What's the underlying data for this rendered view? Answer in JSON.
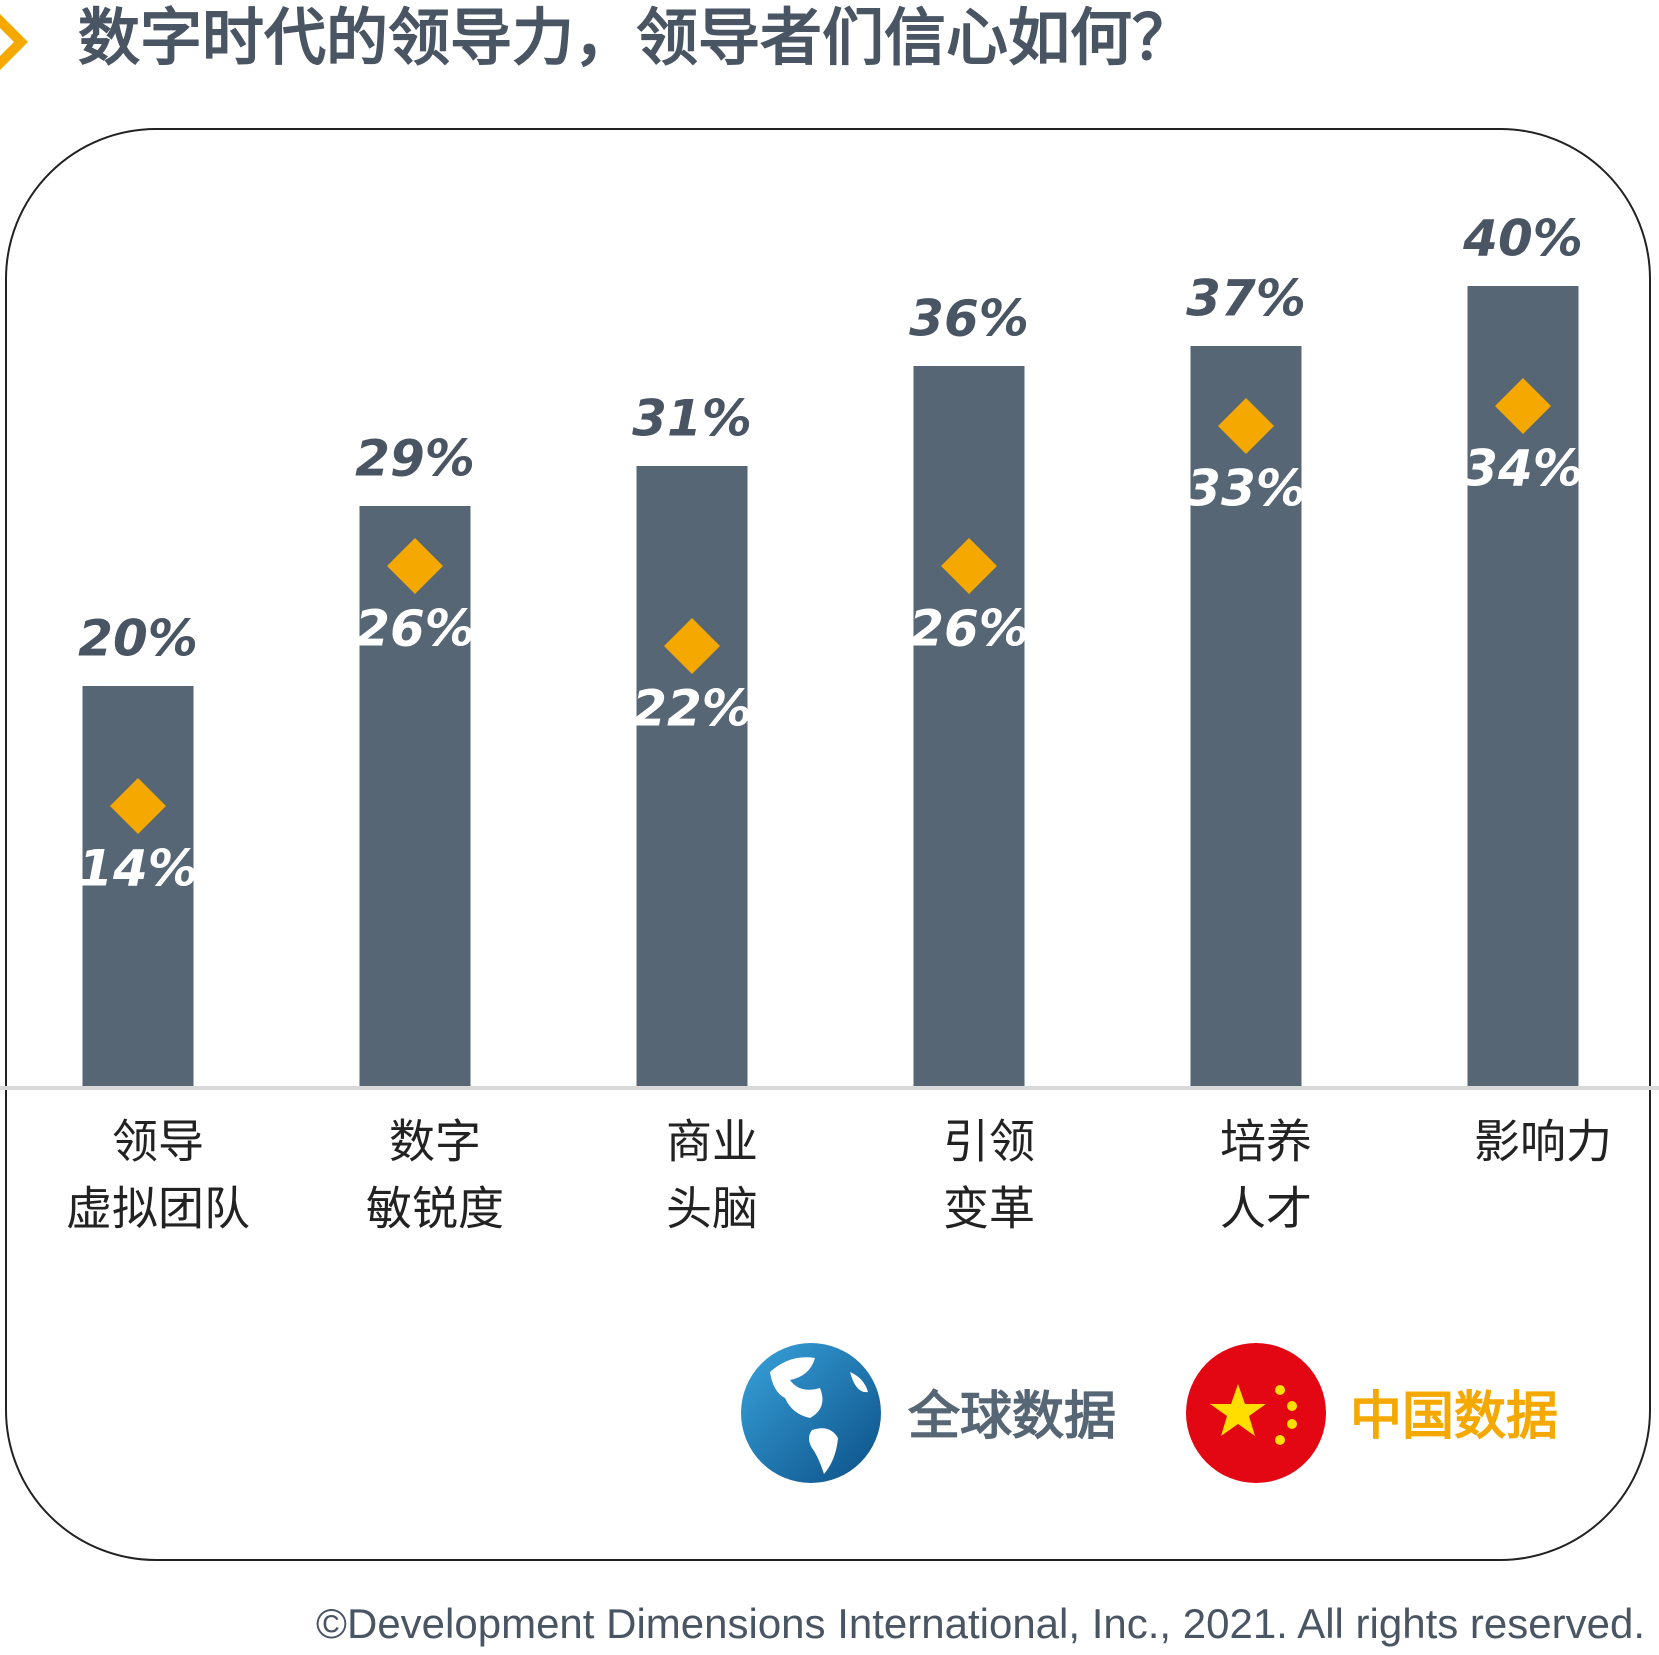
{
  "chart_data": {
    "type": "bar",
    "title": "数字时代的领导力，领导者们信心如何？",
    "categories": [
      [
        "领导",
        "虚拟团队"
      ],
      [
        "数字",
        "敏锐度"
      ],
      [
        "商业",
        "头脑"
      ],
      [
        "引领",
        "变革"
      ],
      [
        "培养",
        "人才"
      ],
      [
        "影响力"
      ]
    ],
    "series": [
      {
        "name": "全球数据",
        "color": "#566674",
        "marker": "bar",
        "values": [
          20,
          29,
          31,
          36,
          37,
          40
        ],
        "value_labels": [
          "20%",
          "29%",
          "31%",
          "36%",
          "37%",
          "40%"
        ]
      },
      {
        "name": "中国数据",
        "color": "#f5a800",
        "marker": "diamond",
        "values": [
          14,
          26,
          22,
          26,
          33,
          34
        ],
        "value_labels": [
          "14%",
          "26%",
          "22%",
          "26%",
          "33%",
          "34%"
        ]
      }
    ]
  },
  "footer": "©Development Dimensions International, Inc., 2021. All rights reserved."
}
